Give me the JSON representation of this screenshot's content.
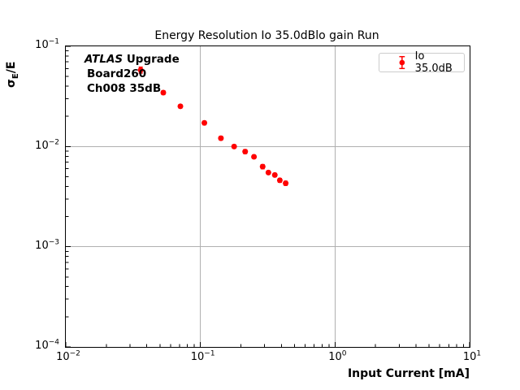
{
  "title": "Energy Resolution Io 35.0dBlo gain Run",
  "axes": {
    "xlabel": "Input Current [mA]",
    "ylabel_sigma": "σ",
    "ylabel_sub": "E",
    "ylabel_rest": "/E"
  },
  "annotation": {
    "line1_italic": "ATLAS",
    "line1_bold": "Upgrade",
    "line2": "Board260",
    "line3": "Ch008 35dB"
  },
  "legend": {
    "label": "Io 35.0dB"
  },
  "colors": {
    "series": "#ff0000",
    "grid": "#b0b0b0",
    "spine": "#000000",
    "legend_border": "#cccccc"
  },
  "chart_data": {
    "type": "scatter",
    "title": "Energy Resolution Io 35.0dBlo gain Run",
    "xlabel": "Input Current [mA]",
    "ylabel": "sigma_E/E",
    "xscale": "log",
    "yscale": "log",
    "xlim": [
      0.01,
      10
    ],
    "ylim": [
      0.0001,
      0.1
    ],
    "x_tick_exponents": [
      -2,
      -1,
      0,
      1
    ],
    "y_tick_exponents": [
      -1,
      -2,
      -3,
      -4
    ],
    "grid": true,
    "legend_position": "upper right",
    "series": [
      {
        "name": "Io 35.0dB",
        "color": "#ff0000",
        "x": [
          0.036,
          0.053,
          0.071,
          0.107,
          0.142,
          0.178,
          0.215,
          0.25,
          0.29,
          0.32,
          0.357,
          0.389,
          0.43
        ],
        "y": [
          0.058,
          0.0345,
          0.0252,
          0.0172,
          0.0121,
          0.01,
          0.0089,
          0.0079,
          0.0063,
          0.0055,
          0.0052,
          0.0046,
          0.0043
        ],
        "y_err": [
          0.004,
          0.0015,
          0.001,
          0.0007,
          0.0005,
          0.0004,
          0.0004,
          0.0003,
          0.0003,
          0.0002,
          0.0002,
          0.0002,
          0.0002
        ]
      }
    ]
  }
}
